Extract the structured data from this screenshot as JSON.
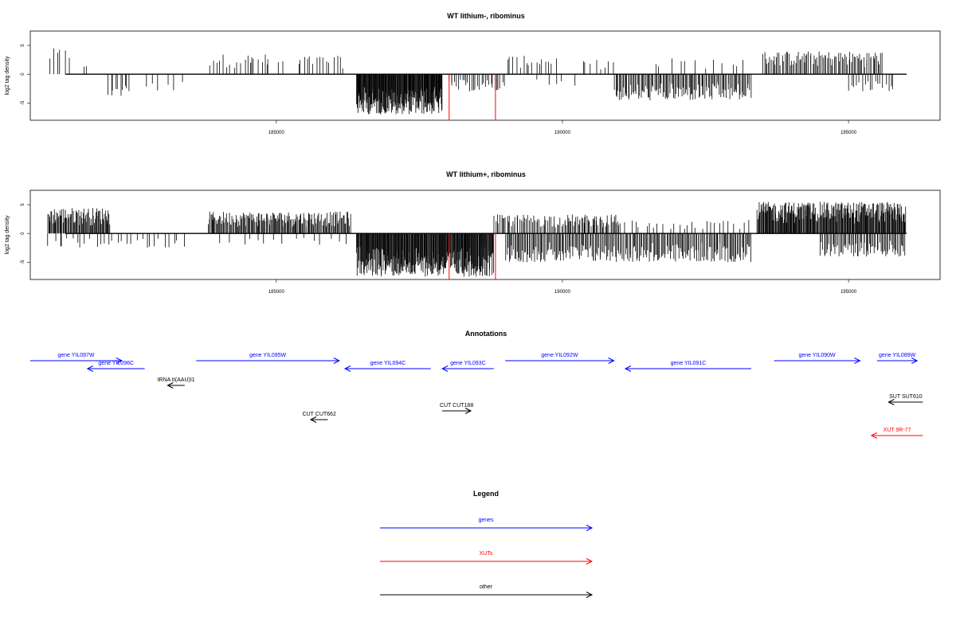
{
  "chart_data": [
    {
      "type": "bar",
      "title": "WT lithium-, ribominus",
      "ylabel": "log2 tag density",
      "xlim": [
        180700,
        196600
      ],
      "ylim": [
        -8,
        7.5
      ],
      "x_ticks": [
        185000,
        190000,
        195000
      ],
      "y_ticks": [
        5,
        0,
        -5
      ],
      "regions": [
        {
          "from": 181000,
          "to": 181400,
          "kind": "pos",
          "density": 6,
          "amp": 4.5
        },
        {
          "from": 181600,
          "to": 181700,
          "kind": "pos",
          "density": 2,
          "amp": 2.5
        },
        {
          "from": 182050,
          "to": 182450,
          "kind": "neg",
          "density": 10,
          "amp": 4.0
        },
        {
          "from": 182600,
          "to": 183400,
          "kind": "neg",
          "density": 6,
          "amp": 3.0
        },
        {
          "from": 183800,
          "to": 184900,
          "kind": "pos",
          "density": 18,
          "amp": 3.5
        },
        {
          "from": 184400,
          "to": 185400,
          "kind": "pos",
          "density": 6,
          "amp": 2.5
        },
        {
          "from": 185400,
          "to": 186200,
          "kind": "pos",
          "density": 14,
          "amp": 3.2
        },
        {
          "from": 186400,
          "to": 187900,
          "kind": "neg",
          "density": 180,
          "amp": 7.0
        },
        {
          "from": 188000,
          "to": 189000,
          "kind": "neg",
          "density": 30,
          "amp": 3.0
        },
        {
          "from": 189000,
          "to": 189900,
          "kind": "pos",
          "density": 16,
          "amp": 3.2
        },
        {
          "from": 189500,
          "to": 190300,
          "kind": "neg",
          "density": 5,
          "amp": 2.0
        },
        {
          "from": 190300,
          "to": 190900,
          "kind": "pos",
          "density": 8,
          "amp": 2.5
        },
        {
          "from": 190900,
          "to": 193300,
          "kind": "neg",
          "density": 120,
          "amp": 4.6
        },
        {
          "from": 191500,
          "to": 193300,
          "kind": "pos",
          "density": 12,
          "amp": 2.8
        },
        {
          "from": 193500,
          "to": 195600,
          "kind": "pos",
          "density": 90,
          "amp": 4.0
        },
        {
          "from": 195000,
          "to": 195800,
          "kind": "neg",
          "density": 18,
          "amp": 3.0
        }
      ],
      "red_bars": [
        {
          "x": 188020,
          "y": -8
        },
        {
          "x": 188830,
          "y": -8
        }
      ]
    },
    {
      "type": "bar",
      "title": "WT lithium+, ribominus",
      "ylabel": "log2 tag density",
      "xlim": [
        180700,
        196600
      ],
      "ylim": [
        -8,
        7.5
      ],
      "x_ticks": [
        185000,
        190000,
        195000
      ],
      "y_ticks": [
        5,
        0,
        -5
      ],
      "regions": [
        {
          "from": 181000,
          "to": 182100,
          "kind": "pos",
          "density": 80,
          "amp": 4.5
        },
        {
          "from": 181000,
          "to": 183400,
          "kind": "neg",
          "density": 30,
          "amp": 2.5
        },
        {
          "from": 183800,
          "to": 186300,
          "kind": "pos",
          "density": 160,
          "amp": 3.8
        },
        {
          "from": 184000,
          "to": 186300,
          "kind": "neg",
          "density": 15,
          "amp": 2.0
        },
        {
          "from": 186400,
          "to": 188800,
          "kind": "neg",
          "density": 260,
          "amp": 7.5
        },
        {
          "from": 188800,
          "to": 191000,
          "kind": "pos",
          "density": 90,
          "amp": 3.3
        },
        {
          "from": 189000,
          "to": 193300,
          "kind": "neg",
          "density": 220,
          "amp": 5.0
        },
        {
          "from": 190000,
          "to": 193300,
          "kind": "pos",
          "density": 40,
          "amp": 2.5
        },
        {
          "from": 193400,
          "to": 196000,
          "kind": "pos",
          "density": 240,
          "amp": 5.5
        },
        {
          "from": 194500,
          "to": 196000,
          "kind": "neg",
          "density": 70,
          "amp": 4.0
        }
      ],
      "red_bars": [
        {
          "x": 188020,
          "y": -8
        },
        {
          "x": 188830,
          "y": -8
        }
      ]
    }
  ],
  "annotations": {
    "title": "Annotations",
    "tracks": [
      {
        "label": "gene YIL097W",
        "from": 180700,
        "to": 182300,
        "dir": "right",
        "row": 0,
        "color": "#0000ff"
      },
      {
        "label": "gene YIL096C",
        "from": 182700,
        "to": 181700,
        "dir": "left",
        "row": 1,
        "color": "#0000ff"
      },
      {
        "label": "tRNA tI(AAU)I1",
        "from": 183400,
        "to": 183100,
        "dir": "left",
        "row": 2,
        "color": "#000000"
      },
      {
        "label": "gene YIL095W",
        "from": 183600,
        "to": 186100,
        "dir": "right",
        "row": 0,
        "color": "#0000ff"
      },
      {
        "label": "gene YIL094C",
        "from": 187700,
        "to": 186200,
        "dir": "left",
        "row": 1,
        "color": "#0000ff"
      },
      {
        "label": "CUT CUT662",
        "from": 185900,
        "to": 185600,
        "dir": "left",
        "row": 4,
        "color": "#000000"
      },
      {
        "label": "CUT CUT188",
        "from": 187900,
        "to": 188400,
        "dir": "right",
        "row": 3,
        "color": "#000000"
      },
      {
        "label": "gene YIL093C",
        "from": 188800,
        "to": 187900,
        "dir": "left",
        "row": 1,
        "color": "#0000ff"
      },
      {
        "label": "gene YIL092W",
        "from": 189000,
        "to": 190900,
        "dir": "right",
        "row": 0,
        "color": "#0000ff"
      },
      {
        "label": "gene YIL091C",
        "from": 193300,
        "to": 191100,
        "dir": "left",
        "row": 1,
        "color": "#0000ff"
      },
      {
        "label": "gene YIL090W",
        "from": 193700,
        "to": 195200,
        "dir": "right",
        "row": 0,
        "color": "#0000ff"
      },
      {
        "label": "gene YIL089W",
        "from": 195500,
        "to": 196200,
        "dir": "right",
        "row": 0,
        "color": "#0000ff"
      },
      {
        "label": "SUT SUT610",
        "from": 196300,
        "to": 195700,
        "dir": "left",
        "row": 5,
        "color": "#000000"
      },
      {
        "label": "XUT 9R-77",
        "from": 196300,
        "to": 195400,
        "dir": "left",
        "row": 6,
        "color": "#ff0000"
      }
    ]
  },
  "legend": {
    "title": "Legend",
    "items": [
      {
        "label": "genes",
        "color": "#0000ff"
      },
      {
        "label": "XUTs",
        "color": "#ff0000"
      },
      {
        "label": "other",
        "color": "#000000"
      }
    ]
  }
}
